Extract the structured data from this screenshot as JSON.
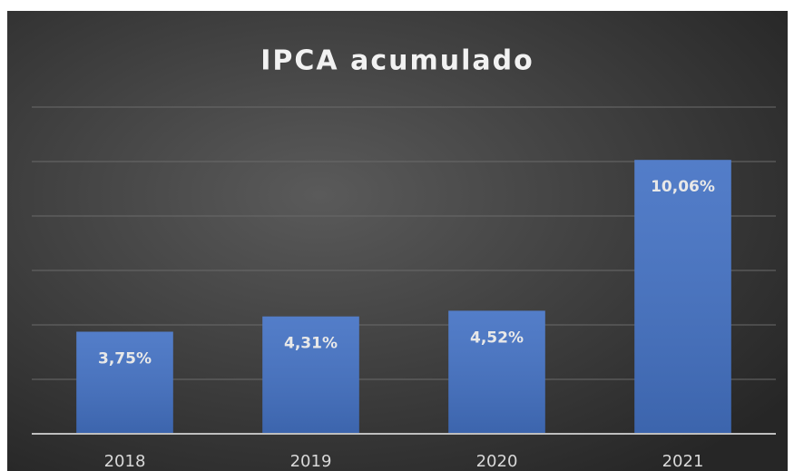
{
  "chart_data": {
    "type": "bar",
    "title": "IPCA acumulado",
    "categories": [
      "2018",
      "2019",
      "2020",
      "2021"
    ],
    "values": [
      3.75,
      4.31,
      4.52,
      10.06
    ],
    "value_labels": [
      "3,75%",
      "4,31%",
      "4,52%",
      "10,06%"
    ],
    "color": "#4472c4",
    "ylim": [
      0,
      12
    ],
    "yticks": [
      0,
      2,
      4,
      6,
      8,
      10,
      12
    ],
    "grid": true
  }
}
